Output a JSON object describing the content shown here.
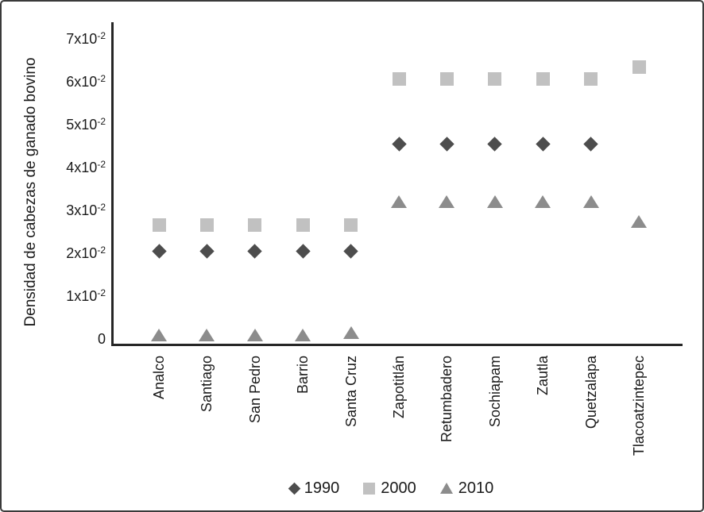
{
  "figure": {
    "background": "#ffffff",
    "border_color": "#3a3a3a",
    "axis_color": "#262626",
    "text_color": "#1a1a1a"
  },
  "chart_data": {
    "type": "scatter",
    "title": "",
    "xlabel": "",
    "ylabel": "Densidad de cabezas de ganado bovino",
    "ylim": [
      0,
      0.07
    ],
    "grid": false,
    "legend_position": "bottom",
    "y_ticks": [
      {
        "text": "7x10",
        "sup": "-2",
        "value": 0.07
      },
      {
        "text": "6x10",
        "sup": "-2",
        "value": 0.06
      },
      {
        "text": "5x10",
        "sup": "-2",
        "value": 0.05
      },
      {
        "text": "4x10",
        "sup": "-2",
        "value": 0.04
      },
      {
        "text": "3x10",
        "sup": "-2",
        "value": 0.03
      },
      {
        "text": "2x10",
        "sup": "-2",
        "value": 0.02
      },
      {
        "text": "1x10",
        "sup": "-2",
        "value": 0.01
      },
      {
        "text": "0",
        "sup": "",
        "value": 0
      }
    ],
    "categories": [
      "Analco",
      "Santiago",
      "San Pedro",
      "Barrio",
      "Santa Cruz",
      "Zapotitlán",
      "Retumbadero",
      "Sochiapam",
      "Zautla",
      "Quetzalapa",
      "Tlacoatzintepec"
    ],
    "series": [
      {
        "name": "1990",
        "marker": "diamond",
        "color": "#4d4d4d",
        "values": [
          0.0205,
          0.0205,
          0.0205,
          0.0205,
          0.0205,
          0.0455,
          0.0455,
          0.0455,
          0.0455,
          0.0455,
          null
        ]
      },
      {
        "name": "2000",
        "marker": "square",
        "color": "#c1c1c1",
        "values": [
          0.0265,
          0.0265,
          0.0265,
          0.0265,
          0.0265,
          0.0607,
          0.0607,
          0.0607,
          0.0607,
          0.0607,
          0.0635
        ]
      },
      {
        "name": "2010",
        "marker": "triangle",
        "color": "#8c8c8c",
        "values": [
          0.001,
          0.001,
          0.001,
          0.001,
          0.0015,
          0.032,
          0.032,
          0.032,
          0.032,
          0.032,
          0.0275
        ]
      }
    ]
  }
}
